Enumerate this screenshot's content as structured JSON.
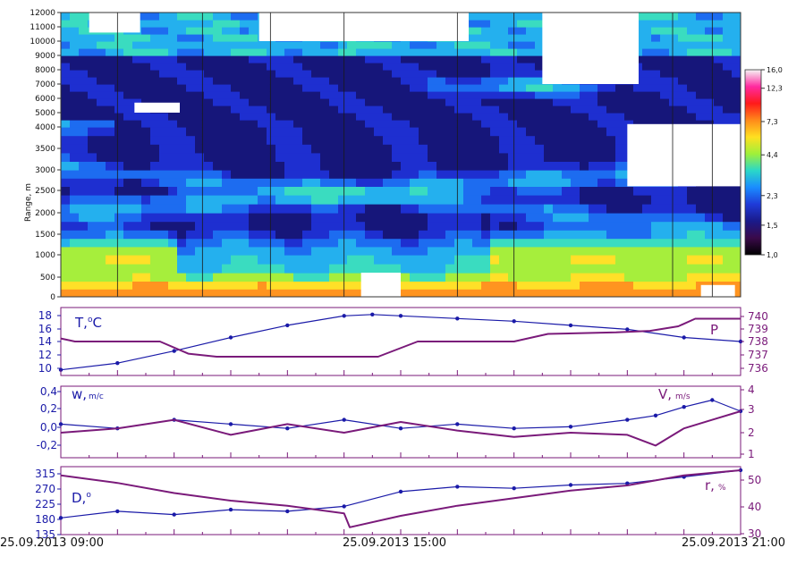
{
  "chart_data": [
    {
      "type": "heatmap",
      "ylabel": "Range, m",
      "yticks": [
        0,
        500,
        1000,
        1500,
        2000,
        2500,
        3000,
        3500,
        4000,
        5000,
        6000,
        7000,
        8000,
        9000,
        10000,
        11000,
        12000
      ],
      "colorbar": {
        "ticks": [
          "16,0",
          "12,3",
          "7,3",
          "4,4",
          "2,3",
          "1,5",
          "1,0"
        ],
        "colors": [
          "#f5f5f5",
          "#ff2aa0",
          "#ff1a1a",
          "#ff8a1a",
          "#ffe020",
          "#9ff03a",
          "#2ad8c8",
          "#1a8cff",
          "#1f3bd8",
          "#1a1a8a",
          "#3a0a4a",
          "#000000"
        ]
      },
      "colormap": [
        "#16167a",
        "#1e2fd0",
        "#1d6cf0",
        "#24b0ee",
        "#3adcc0",
        "#a6ee3c",
        "#ffe028",
        "#ff9420",
        "#ff2a1c",
        "#ff2aa0",
        "#ffffff"
      ]
    },
    {
      "type": "line",
      "left_label": "T,",
      "left_label_sup": "o",
      "left_label_tail": "C",
      "right_label": "P",
      "left_ticks": [
        "18",
        "16",
        "14",
        "12",
        "10"
      ],
      "right_ticks": [
        "740",
        "739",
        "738",
        "737",
        "736"
      ],
      "ylim_left": [
        9.5,
        18.5
      ],
      "ylim_right": [
        736,
        740
      ],
      "series": [
        {
          "key": "T",
          "color": "#1a1aa8",
          "marker": "dot",
          "x": [
            9,
            10,
            11,
            12,
            13,
            14,
            14.5,
            15,
            16,
            17,
            18,
            19,
            20,
            21
          ],
          "values": [
            9.8,
            10.8,
            12.6,
            14.6,
            16.4,
            17.8,
            18.0,
            17.8,
            17.4,
            17.0,
            16.4,
            15.8,
            14.6,
            14.0
          ]
        },
        {
          "key": "P",
          "color": "#7a1a7a",
          "marker": "none",
          "x": [
            9,
            9.25,
            10,
            10.75,
            11.25,
            11.75,
            14.6,
            15.3,
            17,
            17.6,
            18.8,
            19.4,
            19.9,
            20.2,
            21
          ],
          "values": [
            738.2,
            738,
            738,
            738,
            737.2,
            737,
            737,
            738,
            738,
            738.5,
            738.6,
            738.7,
            739.0,
            739.5,
            739.5
          ]
        }
      ]
    },
    {
      "type": "line",
      "left_label": "w,",
      "left_label_sub": "m/c",
      "right_label": "V,",
      "right_label_sub": "m/s",
      "left_ticks": [
        "0,4",
        "0,2",
        "0,0",
        "-0,2"
      ],
      "right_ticks": [
        "4",
        "3",
        "2",
        "1"
      ],
      "ylim_left": [
        -0.35,
        0.4
      ],
      "ylim_right": [
        1,
        4
      ],
      "series": [
        {
          "key": "w",
          "color": "#1a1aa8",
          "marker": "dot",
          "x": [
            9,
            10,
            11,
            12,
            13,
            14,
            15,
            16,
            17,
            18,
            19,
            19.5,
            20,
            20.5,
            21
          ],
          "values": [
            0.0,
            -0.05,
            0.05,
            0.0,
            -0.05,
            0.05,
            -0.05,
            0.0,
            -0.05,
            -0.03,
            0.05,
            0.1,
            0.2,
            0.28,
            0.15
          ]
        },
        {
          "key": "V",
          "color": "#7a1a7a",
          "marker": "none",
          "x": [
            9,
            10,
            11,
            12,
            13,
            14,
            15,
            16,
            17,
            18,
            19,
            19.5,
            20,
            20.5,
            21
          ],
          "values": [
            2.0,
            2.2,
            2.6,
            1.9,
            2.4,
            2.0,
            2.5,
            2.1,
            1.8,
            2.0,
            1.9,
            1.4,
            2.2,
            2.6,
            3.0
          ]
        }
      ]
    },
    {
      "type": "line",
      "left_label": "D,",
      "left_label_sup": "o",
      "right_label": "r,",
      "right_label_sub": "%",
      "left_ticks": [
        "315",
        "270",
        "225",
        "180",
        "135"
      ],
      "right_ticks": [
        "50",
        "40",
        "30"
      ],
      "ylim_left": [
        135,
        320
      ],
      "ylim_right": [
        30,
        54
      ],
      "series": [
        {
          "key": "D",
          "color": "#1a1aa8",
          "marker": "dot",
          "x": [
            9,
            10,
            11,
            12,
            13,
            14,
            15,
            16,
            17,
            18,
            19,
            20,
            21
          ],
          "values": [
            175,
            195,
            185,
            200,
            195,
            210,
            255,
            270,
            265,
            275,
            280,
            300,
            320
          ]
        },
        {
          "key": "r",
          "color": "#7a1a7a",
          "marker": "none",
          "x": [
            9,
            10,
            11,
            12,
            13,
            14,
            14.1,
            15,
            16,
            17,
            18,
            19,
            20,
            21
          ],
          "values": [
            52,
            49,
            45,
            42,
            40,
            37,
            31.5,
            36,
            40,
            43,
            46,
            48,
            52,
            54
          ]
        }
      ]
    }
  ],
  "time_axis": {
    "labels": [
      "25.09.2013 09:00",
      "25.09.2013 15:00",
      "25.09.2013 21:00"
    ]
  }
}
